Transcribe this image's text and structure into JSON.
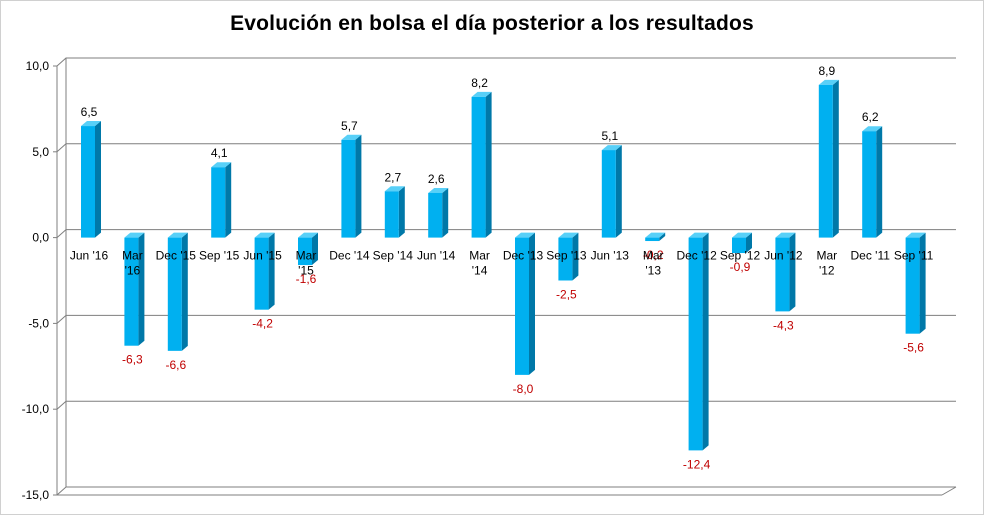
{
  "chart_data": {
    "type": "bar",
    "title": "Evolución en bolsa el día posterior a los resultados",
    "categories": [
      "Jun '16",
      "Mar '16",
      "Dec '15",
      "Sep '15",
      "Jun '15",
      "Mar '15",
      "Dec '14",
      "Sep '14",
      "Jun '14",
      "Mar '14",
      "Dec '13",
      "Sep '13",
      "Jun '13",
      "Mar '13",
      "Dec '12",
      "Sep '12",
      "Jun '12",
      "Mar '12",
      "Dec '11",
      "Sep '11"
    ],
    "values": [
      6.5,
      -6.3,
      -6.6,
      4.1,
      -4.2,
      -1.6,
      5.7,
      2.7,
      2.6,
      8.2,
      -8.0,
      -2.5,
      5.1,
      -0.2,
      -12.4,
      -0.9,
      -4.3,
      8.9,
      6.2,
      -5.6
    ],
    "data_labels": [
      "6,5",
      "-6,3",
      "-6,6",
      "4,1",
      "-4,2",
      "-1,6",
      "5,7",
      "2,7",
      "2,6",
      "8,2",
      "-8,0",
      "-2,5",
      "5,1",
      "-0,2",
      "-12,4",
      "-0,9",
      "-4,3",
      "8,9",
      "6,2",
      "-5,6"
    ],
    "yticks": [
      10,
      5,
      0,
      -5,
      -10,
      -15
    ],
    "ytick_labels": [
      "10,0",
      "5,0",
      "0,0",
      "-5,0",
      "-10,0",
      "-15,0"
    ],
    "ylim": [
      -15,
      10
    ],
    "grid": true,
    "xlabel": "",
    "ylabel": "",
    "colors": {
      "bar_front": "#00b0f0",
      "bar_side": "#0078a8",
      "bar_top": "#58d0f8",
      "negative_label": "#c00000",
      "positive_label": "#000000",
      "grid": "#7f7f7f"
    }
  }
}
